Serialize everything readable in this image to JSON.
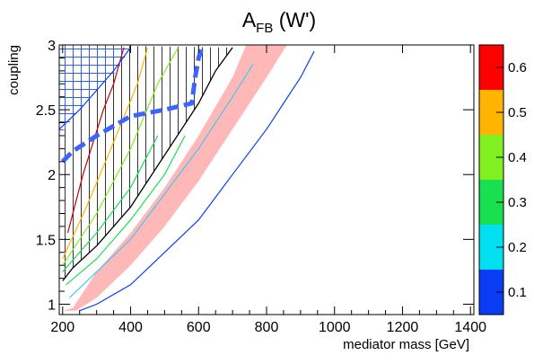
{
  "chart_data": {
    "type": "heatmap",
    "title": {
      "main": "A",
      "sub": "FB",
      "suffix": " (W')"
    },
    "xlabel": "mediator mass [GeV]",
    "ylabel": "coupling",
    "xlim": [
      190,
      1410
    ],
    "ylim": [
      0.92,
      3.0
    ],
    "x_ticks": [
      200,
      400,
      600,
      800,
      1000,
      1200,
      1400
    ],
    "y_ticks": [
      1,
      1.5,
      2,
      2.5,
      3
    ],
    "y_tick_labels": [
      "1",
      "1.5",
      "2",
      "2.5",
      "3"
    ],
    "colorbar": {
      "range": [
        0.05,
        0.65
      ],
      "ticks": [
        0.1,
        0.2,
        0.3,
        0.4,
        0.5,
        0.6
      ],
      "bands": [
        {
          "from": 0.05,
          "to": 0.15,
          "color": "#0a3cf5"
        },
        {
          "from": 0.15,
          "to": 0.25,
          "color": "#00e0f0"
        },
        {
          "from": 0.25,
          "to": 0.35,
          "color": "#18e050"
        },
        {
          "from": 0.35,
          "to": 0.45,
          "color": "#80f020"
        },
        {
          "from": 0.45,
          "to": 0.55,
          "color": "#ffb400"
        },
        {
          "from": 0.55,
          "to": 0.65,
          "color": "#ff0000"
        }
      ]
    },
    "pink_band": {
      "color": "#ffb8b8",
      "left_edge": [
        [
          200,
          0.95
        ],
        [
          230,
          0.97
        ],
        [
          300,
          1.25
        ],
        [
          400,
          1.55
        ],
        [
          500,
          1.9
        ],
        [
          600,
          2.3
        ],
        [
          700,
          2.75
        ],
        [
          740,
          3.0
        ]
      ],
      "right_edge": [
        [
          240,
          0.95
        ],
        [
          300,
          1.05
        ],
        [
          400,
          1.3
        ],
        [
          500,
          1.6
        ],
        [
          600,
          1.95
        ],
        [
          700,
          2.35
        ],
        [
          800,
          2.75
        ],
        [
          860,
          3.0
        ]
      ]
    },
    "contours": [
      {
        "level": 0.1,
        "color": "#0a3cf5",
        "points": [
          [
            250,
            0.95
          ],
          [
            300,
            1.0
          ],
          [
            400,
            1.15
          ],
          [
            500,
            1.4
          ],
          [
            600,
            1.65
          ],
          [
            700,
            2.0
          ],
          [
            800,
            2.35
          ],
          [
            900,
            2.75
          ],
          [
            940,
            2.95
          ]
        ]
      },
      {
        "level": 0.2,
        "color": "#40c8f0",
        "points": [
          [
            220,
            1.05
          ],
          [
            300,
            1.25
          ],
          [
            400,
            1.5
          ],
          [
            500,
            1.85
          ],
          [
            600,
            2.2
          ],
          [
            700,
            2.6
          ],
          [
            760,
            2.85
          ]
        ]
      },
      {
        "level": 0.3,
        "color": "#18e050",
        "points": [
          [
            210,
            1.15
          ],
          [
            300,
            1.35
          ],
          [
            400,
            1.65
          ],
          [
            500,
            2.0
          ],
          [
            560,
            2.3
          ]
        ]
      },
      {
        "level": 0.3,
        "color": "#18e050",
        "points": [
          [
            200,
            1.25
          ],
          [
            300,
            1.55
          ],
          [
            400,
            1.9
          ],
          [
            480,
            2.3
          ]
        ]
      },
      {
        "level": 0.4,
        "color": "#80f020",
        "points": [
          [
            200,
            1.3
          ],
          [
            300,
            1.7
          ],
          [
            400,
            2.2
          ],
          [
            480,
            2.7
          ],
          [
            540,
            2.98
          ]
        ]
      },
      {
        "level": 0.5,
        "color": "#ffb400",
        "points": [
          [
            200,
            1.35
          ],
          [
            270,
            1.75
          ],
          [
            350,
            2.25
          ],
          [
            420,
            2.7
          ],
          [
            450,
            2.98
          ]
        ]
      },
      {
        "level": 0.6,
        "color": "#cc0000",
        "points": [
          [
            215,
            1.55
          ],
          [
            260,
            2.0
          ],
          [
            320,
            2.5
          ],
          [
            350,
            2.7
          ],
          [
            380,
            2.98
          ]
        ]
      },
      {
        "level": 0.1,
        "color": "#0a3cf5",
        "points": [
          [
            190,
            2.35
          ],
          [
            250,
            2.5
          ],
          [
            300,
            2.65
          ],
          [
            350,
            2.8
          ],
          [
            400,
            2.98
          ]
        ]
      }
    ],
    "excluded_region": {
      "hatch": "vertical",
      "boundary": [
        [
          200,
          1.18
        ],
        [
          230,
          1.28
        ],
        [
          300,
          1.45
        ],
        [
          400,
          1.75
        ],
        [
          500,
          2.15
        ],
        [
          600,
          2.55
        ],
        [
          650,
          2.8
        ],
        [
          700,
          2.98
        ]
      ]
    },
    "crosshatch_region": {
      "color": "#3060e0",
      "boundary": [
        [
          190,
          2.3
        ],
        [
          250,
          2.5
        ],
        [
          300,
          2.65
        ],
        [
          360,
          2.8
        ],
        [
          400,
          2.98
        ]
      ]
    },
    "dashed_limit": {
      "color": "#3c64ff",
      "points": [
        [
          200,
          2.1
        ],
        [
          230,
          2.18
        ],
        [
          300,
          2.3
        ],
        [
          400,
          2.45
        ],
        [
          500,
          2.5
        ],
        [
          580,
          2.55
        ],
        [
          590,
          2.75
        ],
        [
          600,
          2.9
        ],
        [
          610,
          2.98
        ]
      ]
    }
  }
}
